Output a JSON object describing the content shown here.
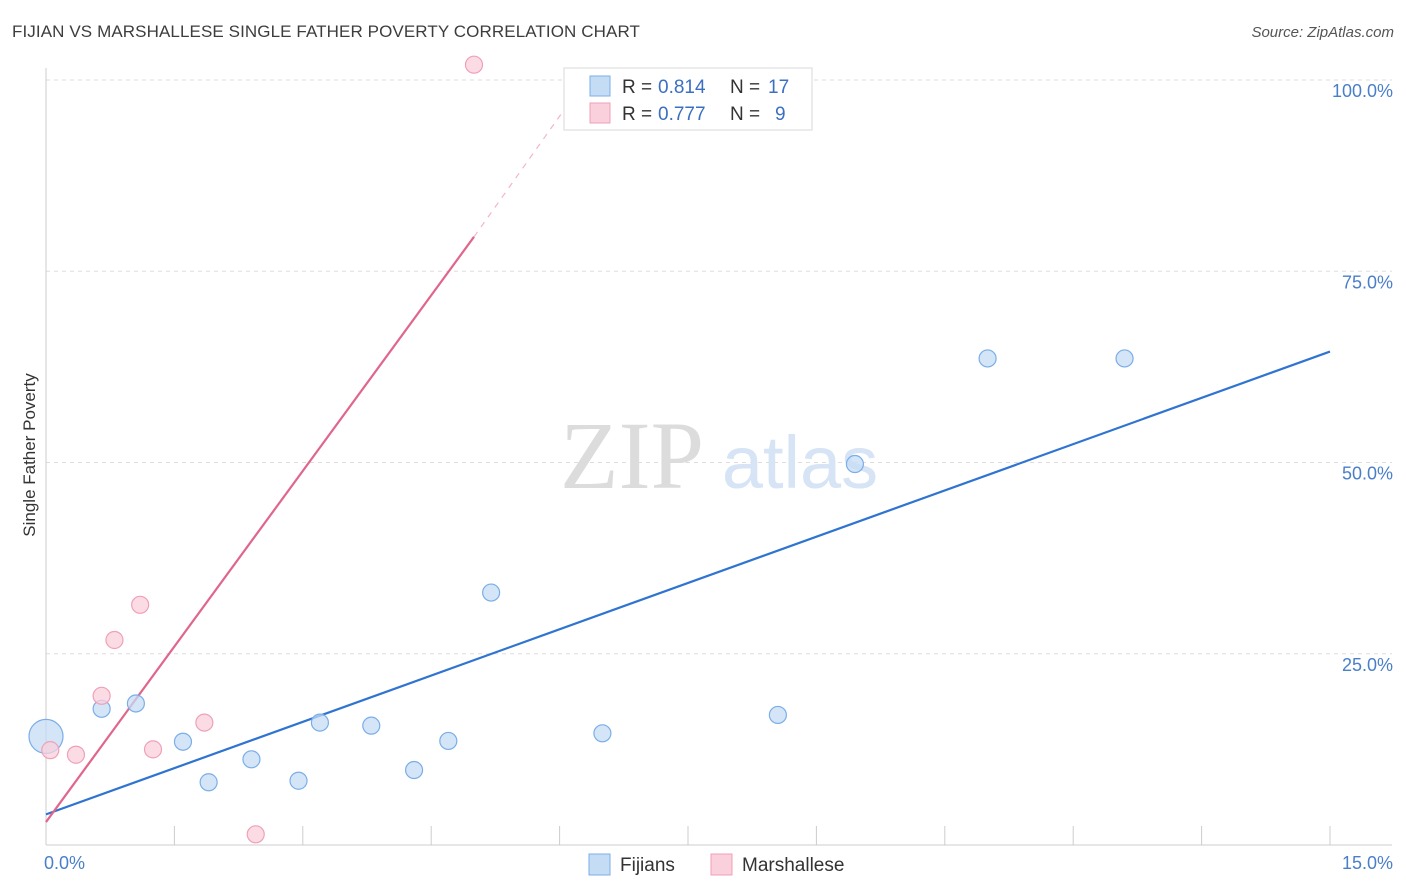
{
  "header": {
    "title": "FIJIAN VS MARSHALLESE SINGLE FATHER POVERTY CORRELATION CHART",
    "source": "Source: ZipAtlas.com"
  },
  "watermark": {
    "zip": "ZIP",
    "atlas": "atlas"
  },
  "chart_data": {
    "type": "scatter",
    "title": "FIJIAN VS MARSHALLESE SINGLE FATHER POVERTY CORRELATION CHART",
    "xlabel": "",
    "ylabel": "Single Father Poverty",
    "xlim": [
      0,
      15
    ],
    "ylim": [
      0,
      100
    ],
    "x_tick_labels": [
      "0.0%",
      "15.0%"
    ],
    "y_ticks": [
      25,
      50,
      75,
      100
    ],
    "y_tick_labels": [
      "25.0%",
      "50.0%",
      "75.0%",
      "100.0%"
    ],
    "legend_stats": {
      "r_label": "R =",
      "n_label": "N =",
      "rows": [
        {
          "r": "0.814",
          "n": "17"
        },
        {
          "r": "0.777",
          "n": "9"
        }
      ]
    },
    "series": [
      {
        "name": "Fijians",
        "color": "#7aaee8",
        "fill": "#c5dcf5",
        "line_color": "#2f74d0",
        "points": [
          {
            "x": 0.0,
            "y": 14.2,
            "big": true
          },
          {
            "x": 0.65,
            "y": 17.8
          },
          {
            "x": 1.05,
            "y": 18.5
          },
          {
            "x": 1.6,
            "y": 13.5
          },
          {
            "x": 1.9,
            "y": 8.2
          },
          {
            "x": 2.4,
            "y": 11.2
          },
          {
            "x": 2.95,
            "y": 8.4
          },
          {
            "x": 3.2,
            "y": 16.0
          },
          {
            "x": 3.8,
            "y": 15.6
          },
          {
            "x": 4.3,
            "y": 9.8
          },
          {
            "x": 4.7,
            "y": 13.6
          },
          {
            "x": 5.2,
            "y": 33.0
          },
          {
            "x": 6.5,
            "y": 14.6
          },
          {
            "x": 8.55,
            "y": 17.0
          },
          {
            "x": 9.45,
            "y": 49.8
          },
          {
            "x": 11.0,
            "y": 63.6
          },
          {
            "x": 12.6,
            "y": 63.6
          }
        ],
        "trend": {
          "x0": 0.0,
          "y0": 4.0,
          "x1": 15.0,
          "y1": 64.5
        }
      },
      {
        "name": "Marshallese",
        "color": "#f0a0b8",
        "fill": "#fad0dc",
        "line_color": "#e0668c",
        "points": [
          {
            "x": 0.05,
            "y": 12.4
          },
          {
            "x": 0.35,
            "y": 11.8
          },
          {
            "x": 0.65,
            "y": 19.5
          },
          {
            "x": 0.8,
            "y": 26.8
          },
          {
            "x": 1.1,
            "y": 31.4
          },
          {
            "x": 1.25,
            "y": 12.5
          },
          {
            "x": 1.85,
            "y": 16.0
          },
          {
            "x": 2.45,
            "y": 1.4
          },
          {
            "x": 5.0,
            "y": 102.0
          }
        ],
        "trend": {
          "x0": 0.0,
          "y0": 3.0,
          "x1": 5.0,
          "y1": 79.5
        },
        "trend_dashed": {
          "x0": 5.0,
          "y0": 79.5,
          "x1": 6.3,
          "y1": 100.0
        }
      }
    ],
    "legend_position": "bottom-center"
  }
}
